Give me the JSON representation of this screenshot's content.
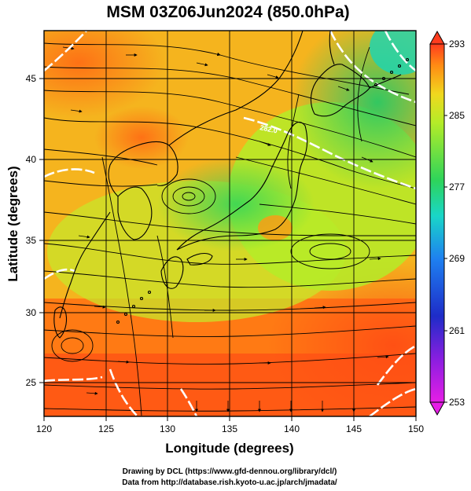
{
  "title": "MSM 03Z06Jun2024 (850.0hPa)",
  "x_axis": {
    "label": "Longitude (degrees)",
    "range": [
      120,
      150
    ],
    "ticks": [
      "120",
      "125",
      "130",
      "135",
      "140",
      "145",
      "150"
    ]
  },
  "y_axis": {
    "label": "Latitude  (degrees)",
    "range": [
      22.4,
      47.6
    ],
    "ticks": [
      "25",
      "30",
      "35",
      "40",
      "45"
    ]
  },
  "colorbar": {
    "range": [
      253,
      293
    ],
    "ticks": [
      "293",
      "285",
      "277",
      "269",
      "261",
      "253"
    ]
  },
  "credits": {
    "line1": "Drawing by DCL (https://www.gfd-dennou.org/library/dcl/)",
    "line2": "Data from http://database.rish.kyoto-u.ac.jp/arch/jmadata/"
  },
  "contour_label": "282.0",
  "colors": {
    "warm": "#ff5a14",
    "orange": "#ff9a14",
    "yellow_green": "#b4ec28",
    "green": "#2ed45a",
    "cyan": "#19d6c8",
    "blue": "#1e3cd8",
    "magenta": "#e61ee6",
    "contour": "#ffffff",
    "streamline": "#000000"
  }
}
